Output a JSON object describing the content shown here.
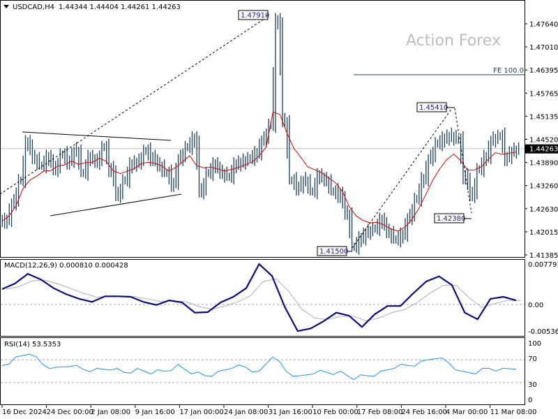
{
  "header": {
    "symbol": "USDCAD,H4",
    "ohlc": "1.44344 1.44404 1.44261 1.44263"
  },
  "watermark": "Action Forex",
  "colors": {
    "bars": "#1c3f5c",
    "ma": "#e00000",
    "macd": "#0a0a80",
    "signal": "#b0b0b0",
    "rsi": "#1e90ff",
    "current": "#000000"
  },
  "chart_data": [
    {
      "type": "bar",
      "name": "price",
      "ylim": [
        1.41385,
        1.479
      ],
      "yticks": [
        "1.47640",
        "1.47010",
        "1.46395",
        "1.45765",
        "1.45135",
        "1.44520",
        "1.43890",
        "1.43260",
        "1.42630",
        "1.42015",
        "1.41385"
      ],
      "current_price": "1.44263",
      "closes": [
        1.423,
        1.428,
        1.434,
        1.444,
        1.44,
        1.438,
        1.44,
        1.437,
        1.441,
        1.439,
        1.442,
        1.436,
        1.44,
        1.439,
        1.443,
        1.437,
        1.43,
        1.434,
        1.438,
        1.439,
        1.442,
        1.44,
        1.438,
        1.436,
        1.433,
        1.44,
        1.443,
        1.445,
        1.431,
        1.436,
        1.438,
        1.436,
        1.435,
        1.438,
        1.439,
        1.44,
        1.441,
        1.445,
        1.449,
        1.477,
        1.45,
        1.434,
        1.432,
        1.434,
        1.431,
        1.435,
        1.434,
        1.431,
        1.43,
        1.425,
        1.416,
        1.418,
        1.42,
        1.421,
        1.423,
        1.42,
        1.418,
        1.419,
        1.424,
        1.429,
        1.434,
        1.44,
        1.444,
        1.445,
        1.446,
        1.445,
        1.435,
        1.43,
        1.437,
        1.44,
        1.445,
        1.446,
        1.44,
        1.442,
        1.4426
      ],
      "annotations": [
        {
          "label": "1.47910",
          "value": 1.4791
        },
        {
          "label": "1.45410",
          "value": 1.4541
        },
        {
          "label": "1.42380",
          "value": 1.4238
        },
        {
          "label": "1.41500",
          "value": 1.415
        },
        {
          "label": "FE 100.0",
          "value": 1.46395
        }
      ]
    },
    {
      "type": "line",
      "name": "MACD",
      "title": "MACD(12,26,9) 0.000810 0.000428",
      "ylim": [
        -0.005367,
        0.007791
      ],
      "yticks": [
        "0.007791",
        "0.00",
        "-0.005367"
      ],
      "values": [
        0.003,
        0.0041,
        0.006,
        0.0049,
        0.0032,
        0.002,
        0.0011,
        0.0005,
        0.0016,
        0.0016,
        0.0015,
        0.0005,
        -0.0001,
        0.0008,
        0.0004,
        -0.0016,
        -0.0015,
        0.0004,
        0.0015,
        0.0032,
        0.0079,
        0.0056,
        -0.0005,
        -0.0052,
        -0.0047,
        -0.0033,
        -0.0016,
        -0.0022,
        -0.0044,
        -0.0019,
        -0.0003,
        -0.0003,
        0.0022,
        0.0045,
        0.0055,
        0.0038,
        -0.0016,
        -0.0029,
        0.0011,
        0.0015,
        0.0008
      ]
    },
    {
      "type": "line",
      "name": "RSI",
      "title": "RSI(14) 53.5353",
      "ylim": [
        0,
        100
      ],
      "yticks": [
        "100",
        "70",
        "30",
        "0"
      ],
      "values": [
        60,
        75,
        80,
        62,
        57,
        58,
        53,
        55,
        52,
        48,
        55,
        45,
        50,
        62,
        45,
        42,
        50,
        55,
        57,
        50,
        75,
        50,
        42,
        45,
        48,
        50,
        35,
        42,
        50,
        55,
        60,
        68,
        72,
        65,
        50,
        45,
        55,
        55,
        53.5
      ]
    }
  ],
  "xaxis": {
    "labels": [
      "16 Dec 2024",
      "24 Dec 00:00",
      "2 Jan 08:00",
      "9 Jan 16:00",
      "17 Jan 00:00",
      "24 Jan 08:00",
      "31 Jan 16:00",
      "10 Feb 00:00",
      "17 Feb 08:00",
      "24 Feb 16:00",
      "4 Mar 00:00",
      "11 Mar 08:00"
    ]
  }
}
